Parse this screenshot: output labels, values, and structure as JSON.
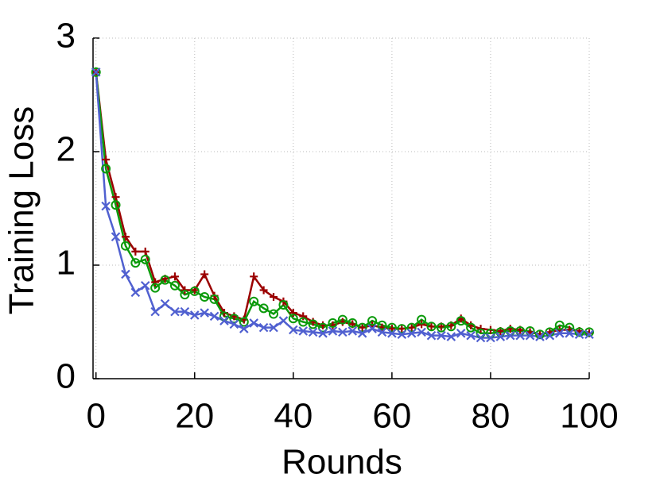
{
  "chart_data": {
    "type": "line",
    "x_label": "Rounds",
    "y_label": "Training Loss",
    "x": [
      0,
      2,
      4,
      6,
      8,
      10,
      12,
      14,
      16,
      18,
      20,
      22,
      24,
      26,
      28,
      30,
      32,
      34,
      36,
      38,
      40,
      42,
      44,
      46,
      48,
      50,
      52,
      54,
      56,
      58,
      60,
      62,
      64,
      66,
      68,
      70,
      72,
      74,
      76,
      78,
      80,
      82,
      84,
      86,
      88,
      90,
      92,
      94,
      96,
      98,
      100
    ],
    "series": [
      {
        "color": "#9b0000",
        "marker": "plus",
        "values": [
          2.7,
          1.93,
          1.6,
          1.25,
          1.12,
          1.12,
          0.85,
          0.88,
          0.9,
          0.78,
          0.78,
          0.92,
          0.73,
          0.58,
          0.55,
          0.52,
          0.9,
          0.78,
          0.72,
          0.68,
          0.58,
          0.55,
          0.5,
          0.47,
          0.47,
          0.5,
          0.48,
          0.45,
          0.47,
          0.45,
          0.44,
          0.44,
          0.45,
          0.48,
          0.46,
          0.46,
          0.47,
          0.53,
          0.47,
          0.44,
          0.43,
          0.42,
          0.44,
          0.43,
          0.41,
          0.39,
          0.41,
          0.43,
          0.43,
          0.42,
          0.4
        ]
      },
      {
        "color": "#0a9a0a",
        "marker": "circle",
        "values": [
          2.7,
          1.85,
          1.53,
          1.17,
          1.02,
          1.05,
          0.8,
          0.87,
          0.82,
          0.74,
          0.77,
          0.72,
          0.7,
          0.55,
          0.53,
          0.5,
          0.68,
          0.62,
          0.57,
          0.65,
          0.53,
          0.5,
          0.48,
          0.45,
          0.49,
          0.52,
          0.49,
          0.45,
          0.51,
          0.47,
          0.45,
          0.44,
          0.45,
          0.52,
          0.46,
          0.45,
          0.46,
          0.51,
          0.45,
          0.4,
          0.4,
          0.41,
          0.42,
          0.42,
          0.42,
          0.39,
          0.41,
          0.47,
          0.45,
          0.41,
          0.41
        ]
      },
      {
        "color": "#5060d0",
        "marker": "cross",
        "values": [
          2.7,
          1.52,
          1.25,
          0.92,
          0.76,
          0.82,
          0.59,
          0.66,
          0.59,
          0.59,
          0.56,
          0.58,
          0.55,
          0.51,
          0.48,
          0.44,
          0.49,
          0.45,
          0.45,
          0.51,
          0.43,
          0.42,
          0.41,
          0.4,
          0.42,
          0.41,
          0.42,
          0.4,
          0.44,
          0.41,
          0.4,
          0.39,
          0.4,
          0.41,
          0.38,
          0.38,
          0.37,
          0.4,
          0.38,
          0.36,
          0.36,
          0.37,
          0.38,
          0.38,
          0.38,
          0.37,
          0.38,
          0.4,
          0.4,
          0.39,
          0.39
        ]
      }
    ],
    "xlim": [
      -0.6,
      100
    ],
    "ylim": [
      0,
      3
    ],
    "xticks": [
      0,
      20,
      40,
      60,
      80,
      100
    ],
    "yticks": [
      0,
      1,
      2,
      3
    ],
    "grid": true
  }
}
